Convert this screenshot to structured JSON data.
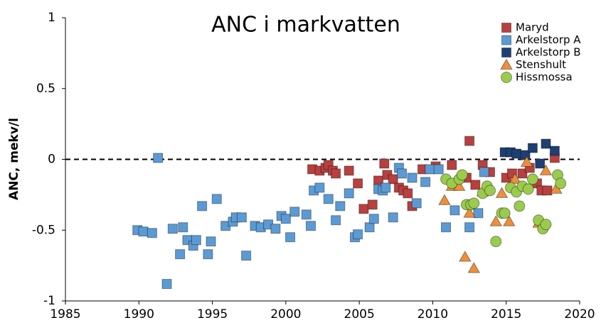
{
  "chart_data": {
    "type": "scatter",
    "title": "ANC i markvatten",
    "ylabel": "ANC, mekv/l",
    "xlim": [
      1985,
      2020
    ],
    "xticks": [
      1985,
      1990,
      1995,
      2000,
      2005,
      2010,
      2015,
      2020
    ],
    "ylim": [
      -1,
      1
    ],
    "yticks": [
      -1,
      -0.5,
      0,
      0.5,
      1
    ],
    "hline": 0,
    "legend": "top-right",
    "series": [
      {
        "name": "Maryd",
        "color": "#b8403f",
        "marker": "square",
        "x": [
          2001.8,
          2002.3,
          2002.7,
          2002.9,
          2003.2,
          2003.4,
          2004.3,
          2004.9,
          2005.3,
          2005.9,
          2006.3,
          2006.7,
          2006.9,
          2007.3,
          2007.7,
          2008.0,
          2008.3,
          2008.6,
          2009.3,
          2010.2,
          2011.3,
          2012.3,
          2012.5,
          2012.9,
          2013.4,
          2013.9,
          2015.0,
          2015.4,
          2016.1,
          2016.6,
          2017.1,
          2017.4,
          2017.8,
          2018.3
        ],
        "values": [
          -0.07,
          -0.08,
          -0.06,
          -0.04,
          -0.08,
          -0.1,
          -0.08,
          -0.17,
          -0.35,
          -0.32,
          -0.15,
          -0.03,
          -0.11,
          -0.14,
          -0.2,
          -0.22,
          -0.24,
          -0.33,
          -0.07,
          -0.05,
          -0.04,
          -0.13,
          0.13,
          -0.18,
          -0.04,
          -0.09,
          -0.13,
          -0.1,
          -0.1,
          -0.06,
          -0.17,
          -0.22,
          -0.22,
          0.01
        ]
      },
      {
        "name": "Arkelstorp A",
        "color": "#5b9bd5",
        "marker": "square",
        "x": [
          1989.9,
          1990.3,
          1990.9,
          1991.3,
          1991.9,
          1992.3,
          1992.8,
          1993.0,
          1993.3,
          1993.7,
          1993.9,
          1994.3,
          1994.7,
          1994.9,
          1995.3,
          1995.9,
          1996.4,
          1996.6,
          1997.0,
          1997.3,
          1997.9,
          1998.3,
          1998.8,
          1999.3,
          1999.7,
          2000.0,
          2000.3,
          2000.6,
          2001.4,
          2001.7,
          2001.9,
          2002.3,
          2002.9,
          2003.4,
          2003.7,
          2004.3,
          2004.7,
          2004.9,
          2005.7,
          2006.0,
          2006.3,
          2006.6,
          2006.8,
          2007.3,
          2007.7,
          2007.9,
          2008.6,
          2008.9,
          2009.5,
          2009.8,
          2010.4,
          2010.9,
          2011.5,
          2012.5,
          2013.1,
          2013.5
        ],
        "values": [
          -0.5,
          -0.51,
          -0.52,
          0.01,
          -0.88,
          -0.49,
          -0.67,
          -0.48,
          -0.57,
          -0.61,
          -0.57,
          -0.33,
          -0.67,
          -0.58,
          -0.28,
          -0.47,
          -0.44,
          -0.41,
          -0.41,
          -0.68,
          -0.47,
          -0.48,
          -0.46,
          -0.49,
          -0.4,
          -0.42,
          -0.55,
          -0.37,
          -0.39,
          -0.47,
          -0.22,
          -0.2,
          -0.28,
          -0.43,
          -0.33,
          -0.24,
          -0.55,
          -0.53,
          -0.48,
          -0.42,
          -0.21,
          -0.22,
          -0.2,
          -0.41,
          -0.06,
          -0.1,
          -0.13,
          -0.31,
          -0.16,
          -0.07,
          -0.07,
          -0.48,
          -0.36,
          -0.48,
          -0.38,
          -0.09
        ]
      },
      {
        "name": "Arkelstorp B",
        "color": "#1f3f73",
        "marker": "square",
        "x": [
          2014.9,
          2015.3,
          2015.7,
          2016.3,
          2016.8,
          2017.3,
          2017.7,
          2018.3
        ],
        "values": [
          0.05,
          0.05,
          0.04,
          0.03,
          0.08,
          -0.03,
          0.11,
          0.06
        ]
      },
      {
        "name": "Stenshult",
        "color": "#ed8f3a",
        "marker": "triangle",
        "x": [
          2010.8,
          2011.3,
          2011.8,
          2012.2,
          2012.5,
          2012.8,
          2013.4,
          2014.3,
          2014.7,
          2015.2,
          2015.6,
          2016.4,
          2017.2,
          2017.7,
          2018.4
        ],
        "values": [
          -0.29,
          -0.19,
          -0.19,
          -0.69,
          -0.38,
          -0.77,
          -0.23,
          -0.44,
          -0.24,
          -0.44,
          -0.14,
          -0.02,
          -0.45,
          -0.08,
          -0.21
        ]
      },
      {
        "name": "Hissmossa",
        "color": "#9bcb4c",
        "marker": "circle",
        "x": [
          2010.9,
          2011.3,
          2011.8,
          2012.0,
          2012.3,
          2012.6,
          2012.8,
          2013.4,
          2013.7,
          2013.9,
          2014.3,
          2014.7,
          2014.9,
          2015.3,
          2015.7,
          2015.9,
          2016.1,
          2016.5,
          2016.8,
          2017.2,
          2017.5,
          2017.7,
          2018.5,
          2018.7
        ],
        "values": [
          -0.14,
          -0.17,
          -0.14,
          -0.11,
          -0.32,
          -0.32,
          -0.31,
          -0.24,
          -0.19,
          -0.22,
          -0.58,
          -0.38,
          -0.38,
          -0.2,
          -0.23,
          -0.33,
          -0.19,
          -0.21,
          -0.14,
          -0.43,
          -0.49,
          -0.46,
          -0.11,
          -0.17
        ]
      }
    ]
  }
}
